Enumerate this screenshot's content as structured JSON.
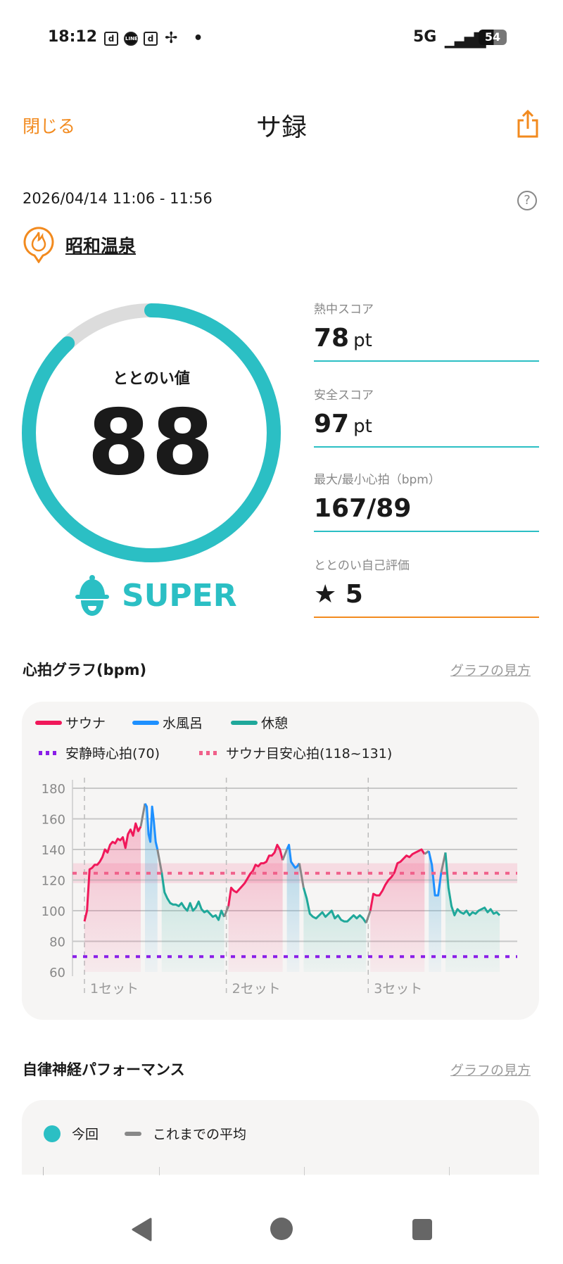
{
  "status_bar": {
    "time": "18:12",
    "icons": [
      "docomo-d-icon",
      "line-icon",
      "docomo-d-icon",
      "pinwheel-icon",
      "dot-icon"
    ],
    "network": "5G",
    "battery": "54"
  },
  "header": {
    "close_label": "閉じる",
    "title": "サ録",
    "share_icon": "share-icon"
  },
  "session": {
    "datetime": "2026/04/14 11:06 - 11:56",
    "venue": "昭和温泉",
    "help_icon": "?"
  },
  "totonoi": {
    "label": "ととのい値",
    "value": "88",
    "progress_percent": 88,
    "rank": "SUPER",
    "accent": "#2bbfc4"
  },
  "scores": [
    {
      "label": "熱中スコア",
      "value": "78",
      "unit": "pt"
    },
    {
      "label": "安全スコア",
      "value": "97",
      "unit": "pt"
    },
    {
      "label": "最大/最小心拍（bpm）",
      "value": "167/89",
      "unit": ""
    },
    {
      "label": "ととのい自己評価",
      "value": "★ 5",
      "unit": ""
    }
  ],
  "heart_section": {
    "title": "心拍グラフ(bpm)",
    "how_link": "グラフの見方"
  },
  "chart_data": {
    "type": "line",
    "ylim": [
      60,
      180
    ],
    "yticks": [
      "180",
      "160",
      "140",
      "120",
      "100",
      "80",
      "60"
    ],
    "xlim": [
      "11:04",
      "11:58"
    ],
    "grid": true,
    "legend_placement": "top-left",
    "legend": [
      {
        "name": "サウナ",
        "color": "#f0185a",
        "style": "solid"
      },
      {
        "name": "水風呂",
        "color": "#1e90ff",
        "style": "solid"
      },
      {
        "name": "休憩",
        "color": "#1fa89a",
        "style": "solid"
      },
      {
        "name": "安静時心拍(70)",
        "color": "#8a1ee8",
        "style": "dotted"
      },
      {
        "name": "サウナ目安心拍(118~131)",
        "color": "#f0608a",
        "style": "dotted"
      }
    ],
    "resting_hr": 70,
    "target_band": [
      118,
      131
    ],
    "sets": [
      {
        "label": "1セット",
        "start": "11:06"
      },
      {
        "label": "2セット",
        "start": "11:23"
      },
      {
        "label": "3セット",
        "start": "11:40"
      }
    ],
    "segments": [
      {
        "phase": "sauna",
        "start": "11:06",
        "end": "11:13",
        "bpm": [
          93,
          100,
          127,
          128,
          130,
          130,
          132,
          135,
          140,
          138,
          143,
          145,
          144,
          147,
          146,
          148,
          141,
          150,
          153,
          149,
          157,
          152,
          155
        ]
      },
      {
        "phase": "water",
        "start": "11:13",
        "end": "11:15",
        "bpm": [
          170,
          168,
          150,
          145,
          168,
          158,
          145,
          140
        ]
      },
      {
        "phase": "rest",
        "start": "11:15",
        "end": "11:23",
        "bpm": [
          125,
          112,
          108,
          105,
          104,
          104,
          103,
          105,
          102,
          100,
          105,
          100,
          102,
          106,
          101,
          99,
          100,
          98,
          96,
          97,
          94,
          100,
          96
        ]
      },
      {
        "phase": "sauna",
        "start": "11:23",
        "end": "11:30",
        "bpm": [
          103,
          115,
          113,
          112,
          114,
          116,
          118,
          121,
          124,
          126,
          130,
          129,
          131,
          131,
          132,
          136,
          136,
          138,
          143,
          140,
          133
        ]
      },
      {
        "phase": "water",
        "start": "11:30",
        "end": "11:32",
        "bpm": [
          140,
          143,
          132,
          130,
          128,
          129,
          131
        ]
      },
      {
        "phase": "rest",
        "start": "11:32",
        "end": "11:40",
        "bpm": [
          115,
          108,
          98,
          96,
          95,
          97,
          99,
          96,
          98,
          100,
          95,
          97,
          94,
          93,
          93,
          95,
          97,
          95,
          97,
          95,
          92
        ]
      },
      {
        "phase": "sauna",
        "start": "11:40",
        "end": "11:47",
        "bpm": [
          100,
          111,
          110,
          110,
          113,
          117,
          120,
          122,
          125,
          131,
          132,
          134,
          136,
          135,
          137,
          138,
          139,
          140,
          137
        ]
      },
      {
        "phase": "water",
        "start": "11:47",
        "end": "11:49",
        "bpm": [
          139,
          130,
          110,
          110,
          125
        ]
      },
      {
        "phase": "rest",
        "start": "11:49",
        "end": "11:56",
        "bpm": [
          138,
          115,
          103,
          97,
          101,
          99,
          98,
          100,
          97,
          99,
          98,
          100,
          101,
          102,
          99,
          101,
          98,
          99,
          97
        ]
      }
    ]
  },
  "ans_section": {
    "title": "自律神経パフォーマンス",
    "how_link": "グラフの見方",
    "legend": [
      {
        "name": "今回",
        "color": "#2bbfc4"
      },
      {
        "name": "これまでの平均",
        "color": "#888888"
      }
    ]
  },
  "nav": {
    "back": "back-icon",
    "home": "home-icon",
    "recents": "recents-icon"
  }
}
